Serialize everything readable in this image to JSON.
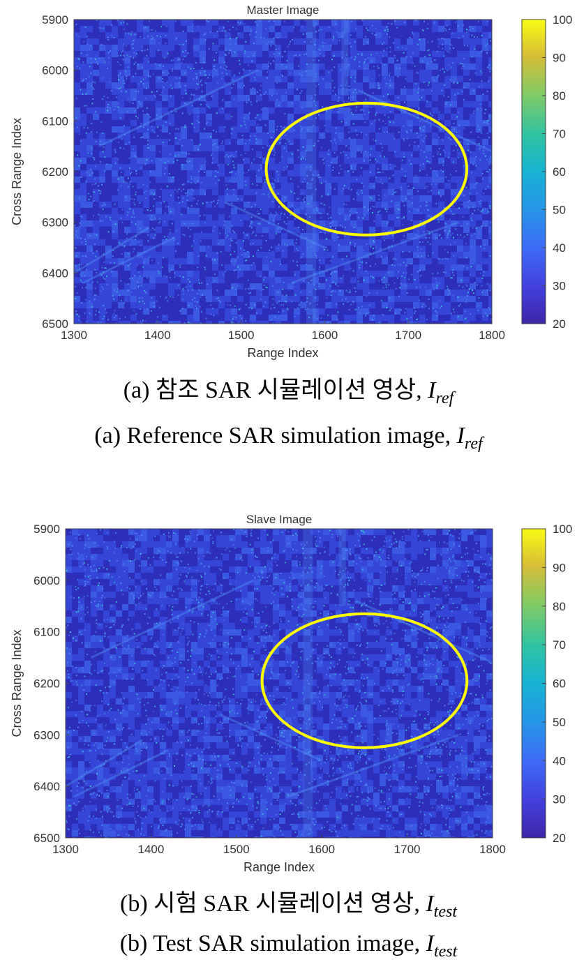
{
  "figures": [
    {
      "id": "a",
      "title": "Master Image",
      "caption_ko": {
        "text": "(a) 참조 SAR 시뮬레이션 영상, ",
        "symbol": "I",
        "subscript": "ref"
      },
      "caption_en": {
        "text": "(a) Reference SAR simulation image, ",
        "symbol": "I",
        "subscript": "ref"
      }
    },
    {
      "id": "b",
      "title": "Slave Image",
      "caption_ko": {
        "text": "(b) 시험 SAR 시뮬레이션 영상, ",
        "symbol": "I",
        "subscript": "test"
      },
      "caption_en": {
        "text": "(b) Test SAR simulation image, ",
        "symbol": "I",
        "subscript": "test"
      }
    }
  ],
  "chart_data": [
    {
      "type": "heatmap",
      "title": "Master Image",
      "xlabel": "Range Index",
      "ylabel": "Cross Range Index",
      "xlim": [
        1300,
        1800
      ],
      "ylim": [
        5900,
        6500
      ],
      "xticks": [
        1300,
        1400,
        1500,
        1600,
        1700,
        1800
      ],
      "yticks": [
        5900,
        6000,
        6100,
        6200,
        6300,
        6400,
        6500
      ],
      "colorbar": {
        "range": [
          20,
          100
        ],
        "ticks": [
          20,
          30,
          40,
          50,
          60,
          70,
          80,
          90,
          100
        ],
        "colormap": "parula"
      },
      "annotation": {
        "shape": "ellipse",
        "center": [
          1650,
          6195
        ],
        "radius_x": 120,
        "radius_y": 130,
        "color": "#ffff00"
      }
    },
    {
      "type": "heatmap",
      "title": "Slave Image",
      "xlabel": "Range Index",
      "ylabel": "Cross Range Index",
      "xlim": [
        1300,
        1800
      ],
      "ylim": [
        5900,
        6500
      ],
      "xticks": [
        1300,
        1400,
        1500,
        1600,
        1700,
        1800
      ],
      "yticks": [
        5900,
        6000,
        6100,
        6200,
        6300,
        6400,
        6500
      ],
      "colorbar": {
        "range": [
          20,
          100
        ],
        "ticks": [
          20,
          30,
          40,
          50,
          60,
          70,
          80,
          90,
          100
        ],
        "colormap": "parula"
      },
      "annotation": {
        "shape": "ellipse",
        "center": [
          1650,
          6195
        ],
        "radius_x": 120,
        "radius_y": 130,
        "color": "#ffff00"
      }
    }
  ],
  "colors": {
    "background_dark": "#2b27b0",
    "background_mid": "#3546d8",
    "speckle": "#4f8cf0",
    "bright": "#3fbcd8",
    "ellipse": "#ffff00"
  }
}
